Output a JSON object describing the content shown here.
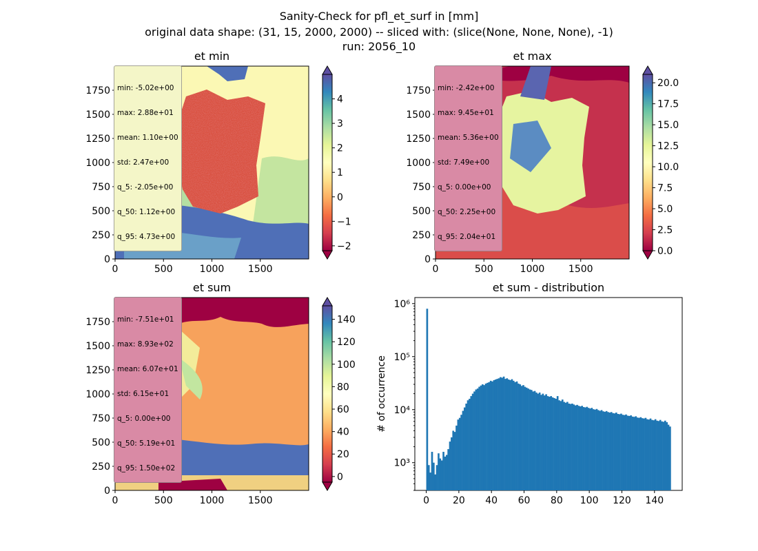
{
  "figure": {
    "suptitle_lines": [
      "Sanity-Check for pfl_et_surf in [mm]",
      "original data shape: (31, 15, 2000, 2000) -- sliced with: (slice(None, None, None), -1)",
      "run: 2056_10"
    ]
  },
  "chart_data": [
    {
      "type": "heatmap",
      "title": "et min",
      "xlabel": "",
      "ylabel": "",
      "xlim": [
        0,
        2000
      ],
      "ylim": [
        0,
        2000
      ],
      "xticks": [
        "0",
        "500",
        "1000",
        "1500"
      ],
      "yticks": [
        "0",
        "250",
        "500",
        "750",
        "1000",
        "1250",
        "1500",
        "1750"
      ],
      "colormap": "Spectral",
      "colorbar": {
        "range": [
          -2.2,
          5.0
        ],
        "ticks": [
          "−2",
          "−1",
          "0",
          "1",
          "2",
          "3",
          "4"
        ],
        "extend": "both"
      },
      "stats": [
        "min: -5.02e+00",
        "max: 2.88e+01",
        "mean: 1.10e+00",
        "std: 2.47e+00",
        "q_5: -2.05e+00",
        "q_50: 1.12e+00",
        "q_95: 4.73e+00"
      ],
      "stats_box_color": "#f4f6c8"
    },
    {
      "type": "heatmap",
      "title": "et max",
      "xlabel": "",
      "ylabel": "",
      "xlim": [
        0,
        2000
      ],
      "ylim": [
        0,
        2000
      ],
      "xticks": [
        "0",
        "500",
        "1000",
        "1500"
      ],
      "yticks": [
        "0",
        "250",
        "500",
        "750",
        "1000",
        "1250",
        "1500",
        "1750"
      ],
      "colormap": "Spectral",
      "colorbar": {
        "range": [
          0,
          21
        ],
        "ticks": [
          "0.0",
          "2.5",
          "5.0",
          "7.5",
          "10.0",
          "12.5",
          "15.0",
          "17.5",
          "20.0"
        ],
        "extend": "both"
      },
      "stats": [
        "min: -2.42e+00",
        "max: 9.45e+01",
        "mean: 5.36e+00",
        "std: 7.49e+00",
        "q_5: 0.00e+00",
        "q_50: 2.25e+00",
        "q_95: 2.04e+01"
      ],
      "stats_box_color": "#d98aa5"
    },
    {
      "type": "heatmap",
      "title": "et sum",
      "xlabel": "",
      "ylabel": "",
      "xlim": [
        0,
        2000
      ],
      "ylim": [
        0,
        2000
      ],
      "xticks": [
        "0",
        "500",
        "1000",
        "1500"
      ],
      "yticks": [
        "0",
        "250",
        "500",
        "750",
        "1000",
        "1250",
        "1500",
        "1750"
      ],
      "colormap": "Spectral",
      "colorbar": {
        "range": [
          -5,
          152
        ],
        "ticks": [
          "0",
          "20",
          "40",
          "60",
          "80",
          "100",
          "120",
          "140"
        ],
        "extend": "both"
      },
      "stats": [
        "min: -7.51e+01",
        "max: 8.93e+02",
        "mean: 6.07e+01",
        "std: 6.15e+01",
        "q_5: 0.00e+00",
        "q_50: 5.19e+01",
        "q_95: 1.50e+02"
      ],
      "stats_box_color": "#d98aa5"
    },
    {
      "type": "bar",
      "title": "et sum - distribution",
      "xlabel": "",
      "ylabel": "# of occurrence",
      "yscale": "log",
      "xlim": [
        -7,
        157
      ],
      "ylim": [
        300,
        1300000
      ],
      "xticks": [
        "0",
        "20",
        "40",
        "60",
        "80",
        "100",
        "120",
        "140"
      ],
      "yticks": [
        "10³",
        "10⁴",
        "10⁵",
        "10⁶"
      ],
      "bar_color": "#1f77b4",
      "bin_width": 1,
      "x": [
        0,
        1,
        2,
        3,
        4,
        5,
        6,
        7,
        8,
        9,
        10,
        11,
        12,
        13,
        14,
        15,
        16,
        17,
        18,
        19,
        20,
        21,
        22,
        23,
        24,
        25,
        26,
        27,
        28,
        29,
        30,
        31,
        32,
        33,
        34,
        35,
        36,
        37,
        38,
        39,
        40,
        41,
        42,
        43,
        44,
        45,
        46,
        47,
        48,
        49,
        50,
        51,
        52,
        53,
        54,
        55,
        56,
        57,
        58,
        59,
        60,
        61,
        62,
        63,
        64,
        65,
        66,
        67,
        68,
        69,
        70,
        71,
        72,
        73,
        74,
        75,
        76,
        77,
        78,
        79,
        80,
        81,
        82,
        83,
        84,
        85,
        86,
        87,
        88,
        89,
        90,
        91,
        92,
        93,
        94,
        95,
        96,
        97,
        98,
        99,
        100,
        101,
        102,
        103,
        104,
        105,
        106,
        107,
        108,
        109,
        110,
        111,
        112,
        113,
        114,
        115,
        116,
        117,
        118,
        119,
        120,
        121,
        122,
        123,
        124,
        125,
        126,
        127,
        128,
        129,
        130,
        131,
        132,
        133,
        134,
        135,
        136,
        137,
        138,
        139,
        140,
        141,
        142,
        143,
        144,
        145,
        146,
        147,
        148,
        149
      ],
      "values": [
        800000,
        900,
        650,
        1600,
        1000,
        600,
        900,
        1500,
        1200,
        1100,
        1600,
        1300,
        1400,
        1800,
        2500,
        3000,
        4000,
        3800,
        5000,
        6500,
        7000,
        8000,
        9500,
        11000,
        13000,
        15000,
        16000,
        18000,
        20000,
        22000,
        24000,
        25000,
        27000,
        28500,
        30000,
        29000,
        31000,
        32000,
        33000,
        35000,
        34000,
        36000,
        37000,
        38000,
        39000,
        41000,
        40000,
        42000,
        38000,
        39000,
        37000,
        36000,
        37500,
        35000,
        33000,
        34000,
        31000,
        30000,
        28000,
        29000,
        27000,
        26000,
        25000,
        24000,
        23500,
        22000,
        22500,
        21000,
        20000,
        21000,
        19000,
        20000,
        18500,
        19500,
        18000,
        17500,
        18000,
        17000,
        16500,
        16000,
        18000,
        15000,
        14500,
        15500,
        14000,
        13500,
        14000,
        13000,
        12800,
        13000,
        12500,
        12000,
        12300,
        11800,
        11500,
        11800,
        11200,
        11000,
        11300,
        10800,
        10500,
        10800,
        10200,
        10000,
        10300,
        9800,
        9500,
        9800,
        9300,
        9100,
        9400,
        9000,
        8800,
        9000,
        8600,
        8500,
        8800,
        8300,
        8200,
        8400,
        8000,
        7900,
        8100,
        7700,
        7600,
        7800,
        7400,
        7300,
        7500,
        7100,
        7000,
        7200,
        6900,
        6800,
        7000,
        6600,
        6500,
        6800,
        6400,
        6300,
        6600,
        6200,
        6100,
        6400,
        6000,
        5900,
        6200,
        5800,
        5200,
        4800
      ]
    }
  ]
}
